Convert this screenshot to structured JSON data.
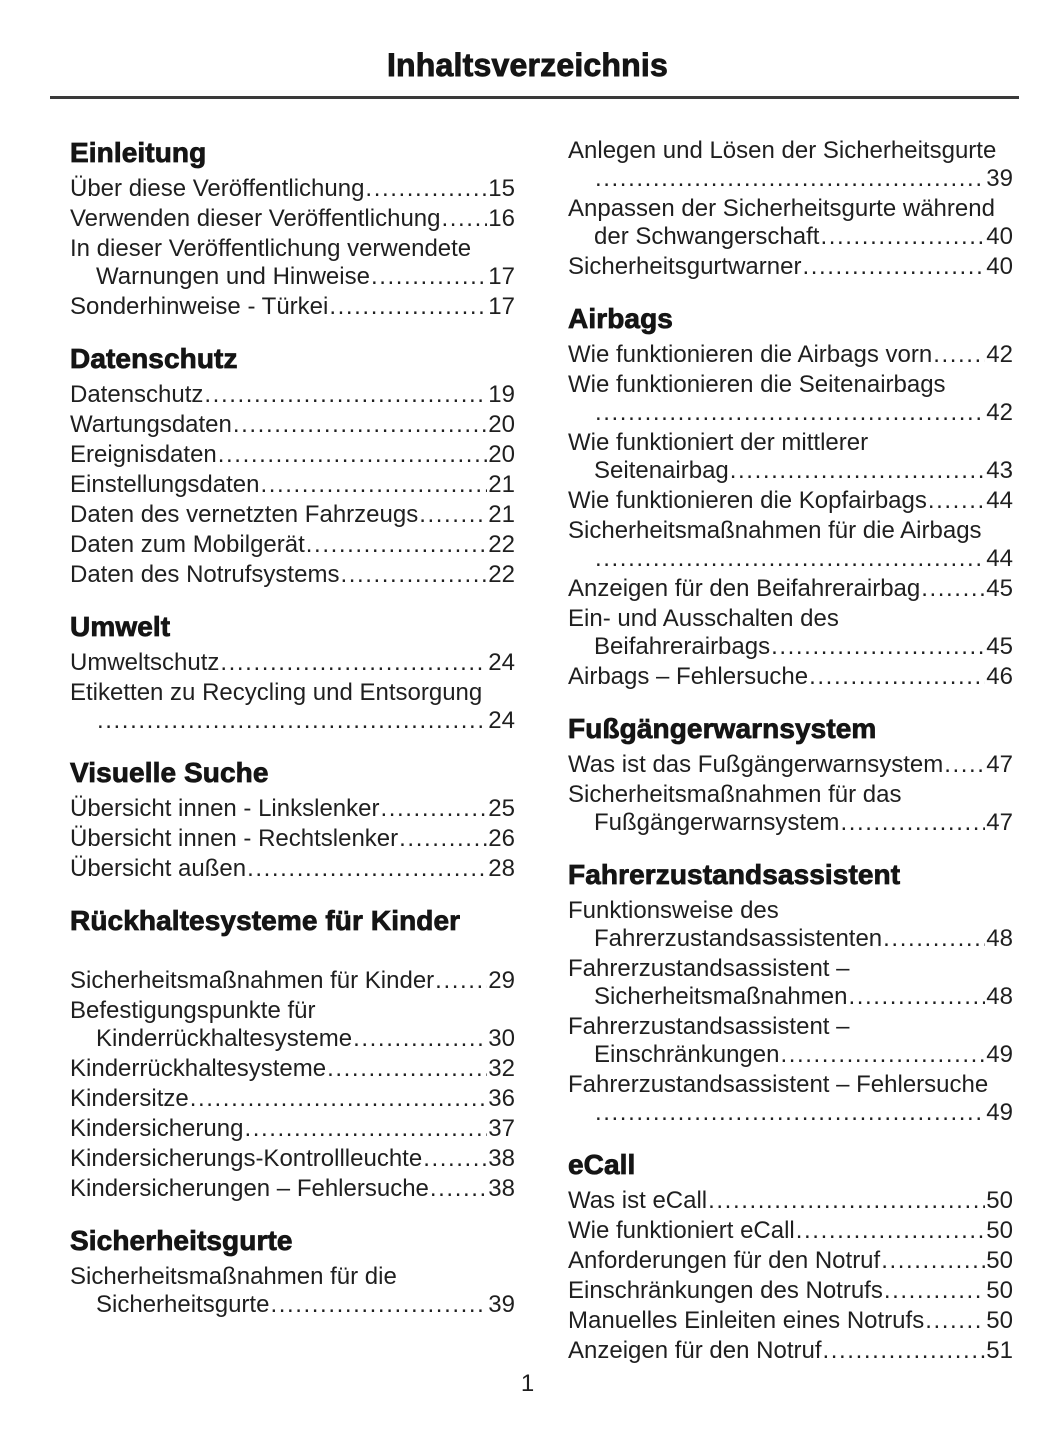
{
  "page": {
    "title": "Inhaltsverzeichnis",
    "page_number": "1"
  },
  "colors": {
    "text": "#1a1a1a",
    "rule": "#3a3a3a",
    "background": "#ffffff"
  },
  "columns": [
    {
      "sections": [
        {
          "heading": "Einleitung",
          "entries": [
            {
              "lines": [
                "Über diese Veröffentlichung"
              ],
              "page": "15"
            },
            {
              "lines": [
                "Verwenden dieser Veröffentlichung"
              ],
              "page": "16"
            },
            {
              "lines": [
                "In dieser Veröffentlichung verwendete",
                "Warnungen und Hinweise"
              ],
              "page": "17"
            },
            {
              "lines": [
                "Sonderhinweise - Türkei"
              ],
              "page": "17"
            }
          ]
        },
        {
          "heading": "Datenschutz",
          "entries": [
            {
              "lines": [
                "Datenschutz"
              ],
              "page": "19"
            },
            {
              "lines": [
                "Wartungsdaten"
              ],
              "page": "20"
            },
            {
              "lines": [
                "Ereignisdaten"
              ],
              "page": "20"
            },
            {
              "lines": [
                "Einstellungsdaten"
              ],
              "page": "21"
            },
            {
              "lines": [
                "Daten des vernetzten Fahrzeugs"
              ],
              "page": "21"
            },
            {
              "lines": [
                "Daten zum Mobilgerät"
              ],
              "page": "22"
            },
            {
              "lines": [
                "Daten des Notrufsystems"
              ],
              "page": "22"
            }
          ]
        },
        {
          "heading": "Umwelt",
          "entries": [
            {
              "lines": [
                "Umweltschutz"
              ],
              "page": "24"
            },
            {
              "lines": [
                "Etiketten zu Recycling und Entsorgung",
                ""
              ],
              "page": "24"
            }
          ]
        },
        {
          "heading": "Visuelle Suche",
          "entries": [
            {
              "lines": [
                "Übersicht innen - Linkslenker"
              ],
              "page": "25"
            },
            {
              "lines": [
                "Übersicht innen - Rechtslenker"
              ],
              "page": "26"
            },
            {
              "lines": [
                "Übersicht außen"
              ],
              "page": "28"
            }
          ]
        },
        {
          "heading": "Rückhaltesysteme für Kinder",
          "gap_after_heading": true,
          "entries": [
            {
              "lines": [
                "Sicherheitsmaßnahmen für Kinder"
              ],
              "page": "29"
            },
            {
              "lines": [
                "Befestigungspunkte für",
                "Kinderrückhaltesysteme"
              ],
              "page": "30"
            },
            {
              "lines": [
                "Kinderrückhaltesysteme"
              ],
              "page": "32"
            },
            {
              "lines": [
                "Kindersitze"
              ],
              "page": "36"
            },
            {
              "lines": [
                "Kindersicherung"
              ],
              "page": "37"
            },
            {
              "lines": [
                "Kindersicherungs-Kontrollleuchte"
              ],
              "page": "38"
            },
            {
              "lines": [
                "Kindersicherungen – Fehlersuche"
              ],
              "page": "38"
            }
          ]
        },
        {
          "heading": "Sicherheitsgurte",
          "entries": [
            {
              "lines": [
                "Sicherheitsmaßnahmen für die",
                "Sicherheitsgurte"
              ],
              "page": "39"
            }
          ]
        }
      ]
    },
    {
      "sections": [
        {
          "heading": null,
          "entries": [
            {
              "lines": [
                "Anlegen und Lösen der Sicherheitsgurte",
                ""
              ],
              "page": "39"
            },
            {
              "lines": [
                "Anpassen der Sicherheitsgurte während",
                "der Schwangerschaft"
              ],
              "page": "40"
            },
            {
              "lines": [
                "Sicherheitsgurtwarner"
              ],
              "page": "40"
            }
          ]
        },
        {
          "heading": "Airbags",
          "entries": [
            {
              "lines": [
                "Wie funktionieren die Airbags vorn"
              ],
              "page": "42"
            },
            {
              "lines": [
                "Wie funktionieren die Seitenairbags",
                ""
              ],
              "page": "42"
            },
            {
              "lines": [
                "Wie funktioniert der mittlerer",
                "Seitenairbag"
              ],
              "page": "43"
            },
            {
              "lines": [
                "Wie funktionieren die Kopfairbags"
              ],
              "page": "44"
            },
            {
              "lines": [
                "Sicherheitsmaßnahmen für die Airbags",
                ""
              ],
              "page": "44"
            },
            {
              "lines": [
                "Anzeigen für den Beifahrerairbag"
              ],
              "page": "45"
            },
            {
              "lines": [
                "Ein- und Ausschalten des",
                "Beifahrerairbags"
              ],
              "page": "45"
            },
            {
              "lines": [
                "Airbags – Fehlersuche"
              ],
              "page": "46"
            }
          ]
        },
        {
          "heading": "Fußgängerwarnsystem",
          "entries": [
            {
              "lines": [
                "Was ist das Fußgängerwarnsystem"
              ],
              "page": "47"
            },
            {
              "lines": [
                "Sicherheitsmaßnahmen für das",
                "Fußgängerwarnsystem"
              ],
              "page": "47"
            }
          ]
        },
        {
          "heading": "Fahrerzustandsassistent",
          "entries": [
            {
              "lines": [
                "Funktionsweise des",
                "Fahrerzustandsassistenten"
              ],
              "page": "48"
            },
            {
              "lines": [
                "Fahrerzustandsassistent –",
                "Sicherheitsmaßnahmen"
              ],
              "page": "48"
            },
            {
              "lines": [
                "Fahrerzustandsassistent –",
                "Einschränkungen"
              ],
              "page": "49"
            },
            {
              "lines": [
                "Fahrerzustandsassistent – Fehlersuche",
                ""
              ],
              "page": "49"
            }
          ]
        },
        {
          "heading": "eCall",
          "entries": [
            {
              "lines": [
                "Was ist eCall"
              ],
              "page": "50"
            },
            {
              "lines": [
                "Wie funktioniert eCall"
              ],
              "page": "50"
            },
            {
              "lines": [
                "Anforderungen für den Notruf"
              ],
              "page": "50"
            },
            {
              "lines": [
                "Einschränkungen des Notrufs"
              ],
              "page": "50"
            },
            {
              "lines": [
                "Manuelles Einleiten eines Notrufs"
              ],
              "page": "50"
            },
            {
              "lines": [
                "Anzeigen für den Notruf"
              ],
              "page": "51"
            }
          ]
        }
      ]
    }
  ]
}
